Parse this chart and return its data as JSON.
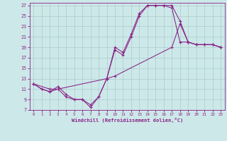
{
  "xlabel": "Windchill (Refroidissement éolien,°C)",
  "bg_color": "#cde8e8",
  "line_color": "#882288",
  "grid_color": "#aacccc",
  "xlim": [
    -0.5,
    23.5
  ],
  "ylim": [
    7,
    27.5
  ],
  "xticks": [
    0,
    1,
    2,
    3,
    4,
    5,
    6,
    7,
    8,
    9,
    10,
    11,
    12,
    13,
    14,
    15,
    16,
    17,
    18,
    19,
    20,
    21,
    22,
    23
  ],
  "yticks": [
    7,
    9,
    11,
    13,
    15,
    17,
    19,
    21,
    23,
    25,
    27
  ],
  "line1_x": [
    0,
    1,
    2,
    3,
    4,
    5,
    6,
    7,
    8,
    9,
    10,
    11,
    12,
    13,
    14,
    15,
    16,
    17,
    18,
    19,
    20,
    21,
    22,
    23
  ],
  "line1_y": [
    12.0,
    11.0,
    10.5,
    11.5,
    10.0,
    9.0,
    9.0,
    7.5,
    9.5,
    13.0,
    19.0,
    18.0,
    21.5,
    25.5,
    27.0,
    27.0,
    27.0,
    27.0,
    24.0,
    20.0,
    19.5,
    19.5,
    19.5,
    19.0
  ],
  "line2_x": [
    0,
    1,
    2,
    3,
    4,
    5,
    6,
    7,
    8,
    9,
    10,
    11,
    12,
    13,
    14,
    15,
    16,
    17,
    18,
    19,
    20,
    21,
    22,
    23
  ],
  "line2_y": [
    12.0,
    11.0,
    10.5,
    11.0,
    9.5,
    9.0,
    9.0,
    8.0,
    9.5,
    13.0,
    18.5,
    17.5,
    21.0,
    25.0,
    27.0,
    27.0,
    27.0,
    26.5,
    20.0,
    20.0,
    19.5,
    19.5,
    19.5,
    19.0
  ],
  "line3_x": [
    0,
    2,
    3,
    9,
    10,
    17,
    18,
    19,
    20,
    21,
    22,
    23
  ],
  "line3_y": [
    12.0,
    11.0,
    11.0,
    13.0,
    13.5,
    19.0,
    23.5,
    20.0,
    19.5,
    19.5,
    19.5,
    19.0
  ]
}
